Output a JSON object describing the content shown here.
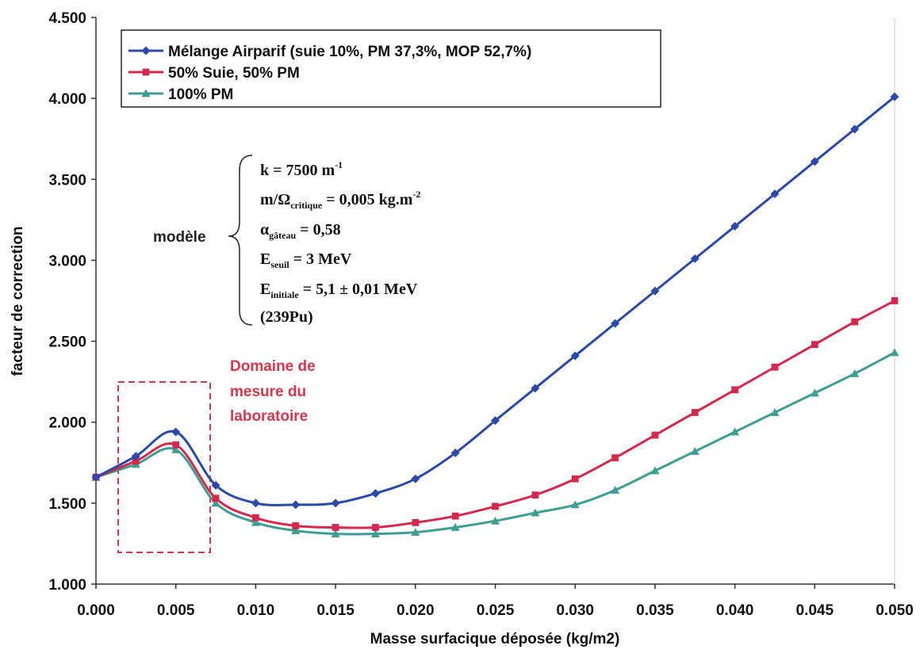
{
  "chart_data": {
    "type": "line",
    "xlabel": "Masse surfacique déposée (kg/m2)",
    "ylabel": "facteur de correction",
    "xlim": [
      0,
      0.05
    ],
    "ylim": [
      1.0,
      4.5
    ],
    "grid": false,
    "legend_position": "top-left",
    "x_tick_labels": [
      "0.000",
      "0.005",
      "0.010",
      "0.015",
      "0.020",
      "0.025",
      "0.030",
      "0.035",
      "0.040",
      "0.045",
      "0.050"
    ],
    "y_tick_labels": [
      "1.000",
      "1.500",
      "2.000",
      "2.500",
      "3.000",
      "3.500",
      "4.000",
      "4.500"
    ],
    "x": [
      0,
      0.0025,
      0.005,
      0.0075,
      0.01,
      0.0125,
      0.015,
      0.0175,
      0.02,
      0.0225,
      0.025,
      0.0275,
      0.03,
      0.0325,
      0.035,
      0.0375,
      0.04,
      0.0425,
      0.045,
      0.0475,
      0.05
    ],
    "series": [
      {
        "name": "Mélange Airparif (suie 10%, PM 37,3%, MOP 52,7%)",
        "color": "#2a49a8",
        "marker": "diamond",
        "values": [
          1.66,
          1.79,
          1.94,
          1.61,
          1.5,
          1.49,
          1.5,
          1.56,
          1.65,
          1.81,
          2.01,
          2.21,
          2.41,
          2.61,
          2.81,
          3.01,
          3.21,
          3.41,
          3.61,
          3.81,
          4.01
        ]
      },
      {
        "name": "50% Suie, 50% PM",
        "color": "#d4284c",
        "marker": "square",
        "values": [
          1.66,
          1.76,
          1.86,
          1.53,
          1.41,
          1.36,
          1.35,
          1.35,
          1.38,
          1.42,
          1.48,
          1.55,
          1.65,
          1.78,
          1.92,
          2.06,
          2.2,
          2.34,
          2.48,
          2.62,
          2.75
        ]
      },
      {
        "name": "100% PM",
        "color": "#3f9e94",
        "marker": "triangle",
        "values": [
          1.66,
          1.74,
          1.83,
          1.5,
          1.38,
          1.33,
          1.31,
          1.31,
          1.32,
          1.35,
          1.39,
          1.44,
          1.49,
          1.58,
          1.7,
          1.82,
          1.94,
          2.06,
          2.18,
          2.3,
          2.43
        ]
      }
    ],
    "annotations": {
      "model_label": "modèle",
      "params": {
        "k_main": "k = 7500 m",
        "k_sup": "-1",
        "m_main": "m/Ω",
        "m_sub": "critique",
        "m_rest": " = 0,005 kg.m",
        "m_sup": "-2",
        "alpha_main": "α",
        "alpha_sub": "gâteau",
        "alpha_rest": " = 0,58",
        "eseuil_main": "E",
        "eseuil_sub": "seuil",
        "eseuil_rest": " = 3 MeV",
        "einit_main": "E",
        "einit_sub": "initiale",
        "einit_rest": " = 5,1 ± 0,01 MeV",
        "pu": "(239Pu)"
      },
      "domain_lines": [
        "Domaine de",
        "mesure du",
        "laboratoire"
      ]
    }
  }
}
